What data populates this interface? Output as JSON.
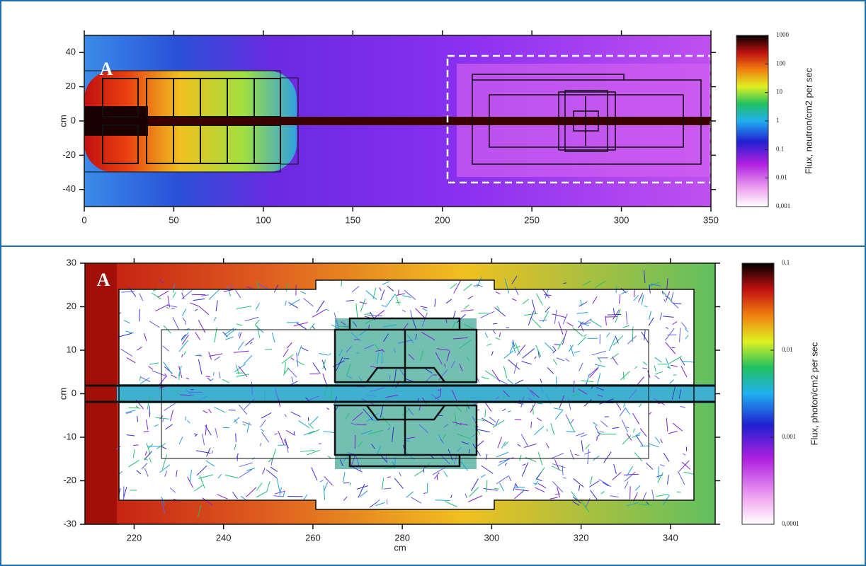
{
  "chart_data": [
    {
      "type": "heatmap",
      "ylabel": "cm",
      "annotation": "A",
      "xlim": [
        0,
        350
      ],
      "xticks": [
        0,
        50,
        100,
        150,
        200,
        250,
        300,
        350
      ],
      "ylim": [
        -50,
        50
      ],
      "yticks": [
        -40,
        -20,
        0,
        20,
        40
      ],
      "colorbar": {
        "label": "Flux, neutron/cm2 per sec",
        "scale": "log",
        "lim": [
          0.001,
          1000
        ],
        "ticks": [
          1000,
          100,
          10,
          1,
          0.1,
          0.01,
          {
            "value": 0.001,
            "label": "0,001"
          }
        ]
      }
    },
    {
      "type": "heatmap",
      "xlabel": "cm",
      "ylabel": "cm",
      "annotation": "A",
      "xlim": [
        209,
        350
      ],
      "xticks": [
        220,
        240,
        260,
        280,
        300,
        320,
        340
      ],
      "ylim": [
        -30,
        30
      ],
      "yticks": [
        -30,
        -20,
        -10,
        0,
        10,
        20,
        30
      ],
      "colorbar": {
        "label": "Flux, photon/cm2 per sec",
        "scale": "log",
        "lim": [
          0.0001,
          0.1
        ],
        "ticks": [
          0.1,
          0.01,
          0.001,
          {
            "value": 0.0001,
            "label": "0,0001"
          }
        ]
      }
    }
  ]
}
